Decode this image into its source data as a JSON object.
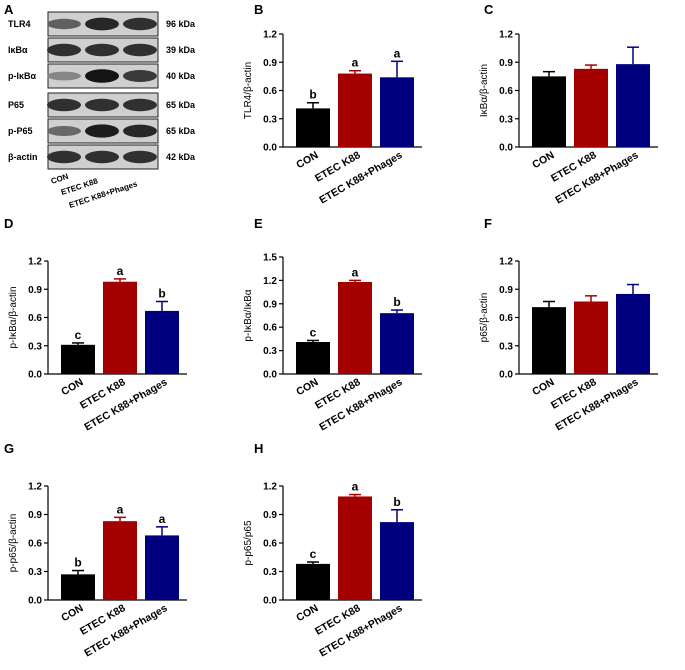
{
  "panel_a": {
    "letter": "A",
    "rows": [
      {
        "label": "TLR4",
        "kda": "96 kDa",
        "intensity": [
          0.55,
          0.85,
          0.8
        ]
      },
      {
        "label": "IκBα",
        "kda": "39 kDa",
        "intensity": [
          0.8,
          0.8,
          0.8
        ]
      },
      {
        "label": "p-IκBα",
        "kda": "40 kDa",
        "intensity": [
          0.35,
          0.95,
          0.75
        ]
      },
      {
        "label": "P65",
        "kda": "65 kDa",
        "intensity": [
          0.8,
          0.8,
          0.8
        ]
      },
      {
        "label": "p-P65",
        "kda": "65 kDa",
        "intensity": [
          0.5,
          0.9,
          0.85
        ]
      },
      {
        "label": "β-actin",
        "kda": "42 kDa",
        "intensity": [
          0.8,
          0.8,
          0.8
        ]
      }
    ],
    "lanes": [
      "CON",
      "ETEC K88",
      "ETEC K88+Phages"
    ]
  },
  "colors": [
    "#000000",
    "#a50000",
    "#00007f"
  ],
  "chart_data": [
    {
      "letter": "B",
      "type": "bar",
      "categories": [
        "CON",
        "ETEC K88",
        "ETEC K88+Phages"
      ],
      "values": [
        0.41,
        0.78,
        0.74
      ],
      "errors": [
        0.06,
        0.03,
        0.17
      ],
      "letters": [
        "b",
        "a",
        "a"
      ],
      "ylabel": "TLR4/β-actin",
      "ylim": [
        0,
        1.2
      ],
      "yticks": [
        "0.0",
        "0.3",
        "0.6",
        "0.9",
        "1.2"
      ]
    },
    {
      "letter": "C",
      "type": "bar",
      "categories": [
        "CON",
        "ETEC K88",
        "ETEC K88+Phages"
      ],
      "values": [
        0.75,
        0.83,
        0.88
      ],
      "errors": [
        0.05,
        0.04,
        0.18
      ],
      "letters": [
        "",
        "",
        ""
      ],
      "ylabel": "IκBα/β-actin",
      "ylim": [
        0,
        1.2
      ],
      "yticks": [
        "0.0",
        "0.3",
        "0.6",
        "0.9",
        "1.2"
      ]
    },
    {
      "letter": "D",
      "type": "bar",
      "categories": [
        "CON",
        "ETEC K88",
        "ETEC K88+Phages"
      ],
      "values": [
        0.31,
        0.98,
        0.67
      ],
      "errors": [
        0.02,
        0.03,
        0.1
      ],
      "letters": [
        "c",
        "a",
        "b"
      ],
      "ylabel": "p-IκBα/β-actin",
      "ylim": [
        0,
        1.2
      ],
      "yticks": [
        "0.0",
        "0.3",
        "0.6",
        "0.9",
        "1.2"
      ]
    },
    {
      "letter": "E",
      "type": "bar",
      "categories": [
        "CON",
        "ETEC K88",
        "ETEC K88+Phages"
      ],
      "values": [
        0.41,
        1.18,
        0.78
      ],
      "errors": [
        0.02,
        0.02,
        0.04
      ],
      "letters": [
        "c",
        "a",
        "b"
      ],
      "ylabel": "p-IκBα/IκBα",
      "ylim": [
        0,
        1.5
      ],
      "yticks": [
        "0.0",
        "0.3",
        "0.6",
        "0.9",
        "1.2",
        "1.5"
      ]
    },
    {
      "letter": "F",
      "type": "bar",
      "categories": [
        "CON",
        "ETEC K88",
        "ETEC K88+Phages"
      ],
      "values": [
        0.71,
        0.77,
        0.85
      ],
      "errors": [
        0.06,
        0.06,
        0.1
      ],
      "letters": [
        "",
        "",
        ""
      ],
      "ylabel": "p65/β-actin",
      "ylim": [
        0,
        1.2
      ],
      "yticks": [
        "0.0",
        "0.3",
        "0.6",
        "0.9",
        "1.2"
      ]
    },
    {
      "letter": "G",
      "type": "bar",
      "categories": [
        "CON",
        "ETEC K88",
        "ETEC K88+Phages"
      ],
      "values": [
        0.27,
        0.83,
        0.68
      ],
      "errors": [
        0.04,
        0.04,
        0.09
      ],
      "letters": [
        "b",
        "a",
        "a"
      ],
      "ylabel": "p-p65/β-actin",
      "ylim": [
        0,
        1.2
      ],
      "yticks": [
        "0.0",
        "0.3",
        "0.6",
        "0.9",
        "1.2"
      ]
    },
    {
      "letter": "H",
      "type": "bar",
      "categories": [
        "CON",
        "ETEC K88",
        "ETEC K88+Phages"
      ],
      "values": [
        0.38,
        1.09,
        0.82
      ],
      "errors": [
        0.02,
        0.02,
        0.13
      ],
      "letters": [
        "c",
        "a",
        "b"
      ],
      "ylabel": "p-p65/p65",
      "ylim": [
        0,
        1.2
      ],
      "yticks": [
        "0.0",
        "0.3",
        "0.6",
        "0.9",
        "1.2"
      ]
    }
  ]
}
